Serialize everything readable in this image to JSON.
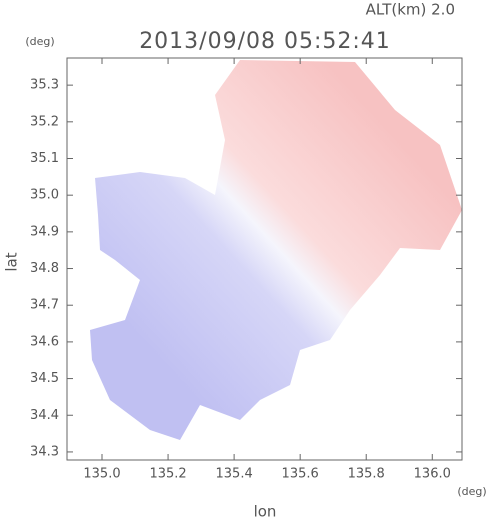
{
  "chart_data": {
    "type": "map",
    "title": "2013/09/08 05:52:41",
    "altitude": "ALT(km)  2.0",
    "x_label": "lon",
    "y_label": "lat",
    "x_unit": "(deg)",
    "y_unit": "(deg)",
    "xlim": [
      134.894,
      136.09
    ],
    "ylim": [
      34.278,
      35.374
    ],
    "xticks": [
      {
        "value": 135,
        "label": "135.0"
      },
      135.2,
      135.4,
      135.6,
      135.8,
      {
        "value": 136,
        "label": "136.0"
      }
    ],
    "yticks": [
      34.3,
      34.4,
      34.5,
      34.6,
      34.7,
      34.8,
      34.9,
      {
        "value": 35,
        "label": "35.0"
      },
      35.1,
      35.2,
      35.3
    ]
  }
}
